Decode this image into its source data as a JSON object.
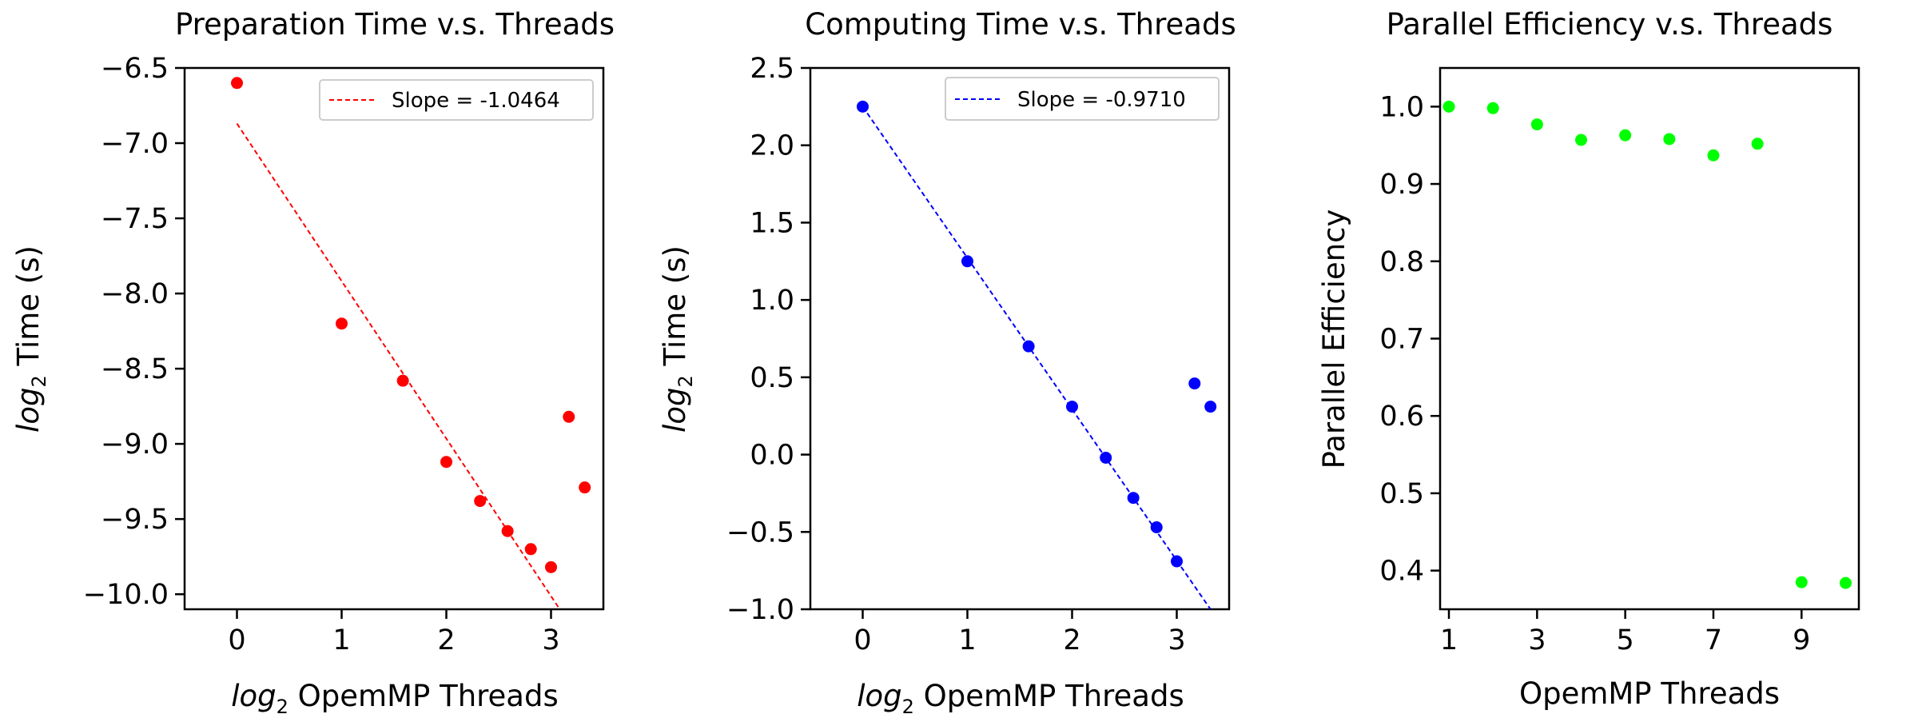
{
  "chart_data": [
    {
      "type": "scatter",
      "title": "Preparation Time v.s. Threads",
      "xlabel_sub": "log",
      "xlabel_subscript": "2",
      "xlabel_rest": " OpemMP Threads",
      "ylabel_sub": "log",
      "ylabel_subscript": "2",
      "ylabel_rest": " Time (s)",
      "xlim": [
        -0.5,
        3.5
      ],
      "ylim": [
        -10.1,
        -6.5
      ],
      "xticks": [
        0,
        1,
        2,
        3
      ],
      "xtick_labels": [
        "0",
        "1",
        "2",
        "3"
      ],
      "yticks": [
        -6.5,
        -7.0,
        -7.5,
        -8.0,
        -8.5,
        -9.0,
        -9.5,
        -10.0
      ],
      "ytick_labels": [
        "−6.5",
        "−7.0",
        "−7.5",
        "−8.0",
        "−8.5",
        "−9.0",
        "−9.5",
        "−10.0"
      ],
      "points": {
        "x": [
          0,
          1,
          1.585,
          2,
          2.322,
          2.585,
          2.807,
          3,
          3.17,
          3.322
        ],
        "y": [
          -6.6,
          -8.2,
          -8.58,
          -9.12,
          -9.38,
          -9.58,
          -9.7,
          -9.82,
          -8.82,
          -9.29
        ],
        "color": "#ff0000"
      },
      "fit_line": {
        "name": "Slope = -1.0464",
        "x": [
          0,
          3.322
        ],
        "y": [
          -6.87,
          -10.35
        ],
        "color": "#ff0000",
        "style": "dashed"
      },
      "legend_position": "upper right",
      "grid": false
    },
    {
      "type": "scatter",
      "title": "Computing Time v.s. Threads",
      "xlabel_sub": "log",
      "xlabel_subscript": "2",
      "xlabel_rest": " OpemMP Threads",
      "ylabel_sub": "log",
      "ylabel_subscript": "2",
      "ylabel_rest": " Time (s)",
      "xlim": [
        -0.5,
        3.5
      ],
      "ylim": [
        -1.0,
        2.5
      ],
      "xticks": [
        0,
        1,
        2,
        3
      ],
      "xtick_labels": [
        "0",
        "1",
        "2",
        "3"
      ],
      "yticks": [
        2.5,
        2.0,
        1.5,
        1.0,
        0.5,
        0.0,
        -0.5,
        -1.0
      ],
      "ytick_labels": [
        "2.5",
        "2.0",
        "1.5",
        "1.0",
        "0.5",
        "0.0",
        "−0.5",
        "−1.0"
      ],
      "points": {
        "x": [
          0,
          1,
          1.585,
          2,
          2.322,
          2.585,
          2.807,
          3,
          3.17,
          3.322
        ],
        "y": [
          2.25,
          1.25,
          0.7,
          0.31,
          -0.02,
          -0.28,
          -0.47,
          -0.69,
          0.46,
          0.31
        ],
        "color": "#0000ff"
      },
      "fit_line": {
        "name": "Slope = -0.9710",
        "x": [
          0,
          3.322
        ],
        "y": [
          2.25,
          -1.0
        ],
        "color": "#0000ff",
        "style": "dashed"
      },
      "legend_position": "upper right",
      "grid": false
    },
    {
      "type": "scatter",
      "title": "Parallel Efficiency v.s. Threads",
      "xlabel": "OpemMP Threads",
      "ylabel": "Parallel Efficiency",
      "xlim": [
        0.8,
        10.3
      ],
      "ylim": [
        0.35,
        1.05
      ],
      "xticks": [
        1,
        3,
        5,
        7,
        9
      ],
      "xtick_labels": [
        "1",
        "3",
        "5",
        "7",
        "9"
      ],
      "yticks": [
        1.0,
        0.9,
        0.8,
        0.7,
        0.6,
        0.5,
        0.4
      ],
      "ytick_labels": [
        "1.0",
        "0.9",
        "0.8",
        "0.7",
        "0.6",
        "0.5",
        "0.4"
      ],
      "points": {
        "x": [
          1,
          2,
          3,
          4,
          5,
          6,
          7,
          8,
          9,
          10
        ],
        "y": [
          1.0,
          0.998,
          0.977,
          0.957,
          0.963,
          0.958,
          0.937,
          0.952,
          0.385,
          0.384
        ],
        "color": "#00ff00"
      },
      "legend_position": "none",
      "grid": false
    }
  ]
}
